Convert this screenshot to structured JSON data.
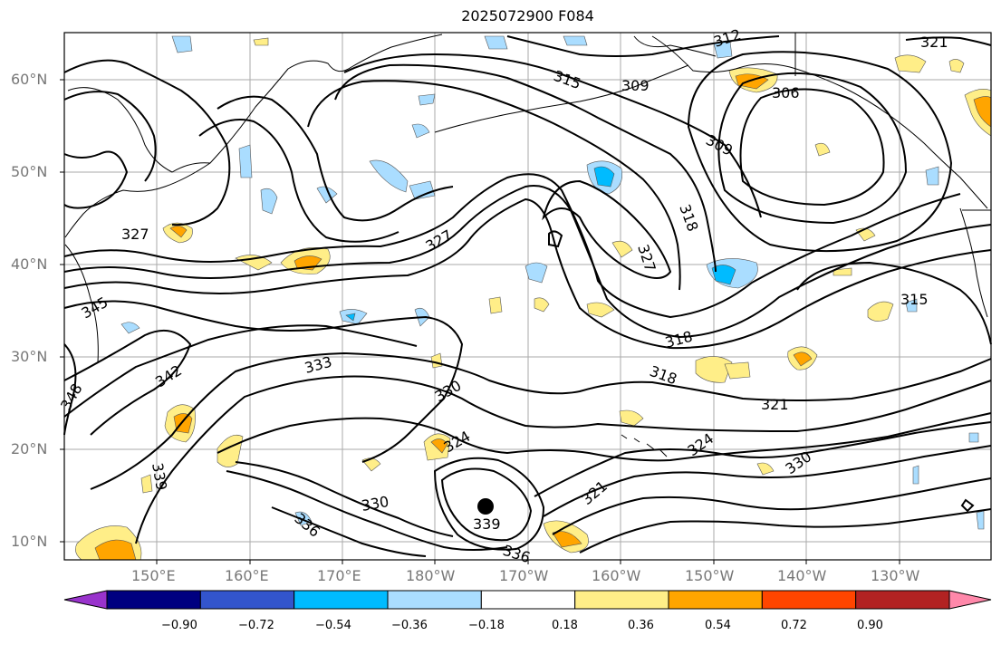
{
  "title": "2025072900 F084",
  "lat_labels": [
    "60°N",
    "50°N",
    "40°N",
    "30°N",
    "20°N",
    "10°N"
  ],
  "lon_labels": [
    "150°E",
    "160°E",
    "170°E",
    "180°W",
    "170°W",
    "160°W",
    "150°W",
    "140°W",
    "130°W"
  ],
  "contour_labels": [
    "312",
    "315",
    "309",
    "306",
    "309",
    "321",
    "318",
    "327",
    "327",
    "345",
    "342",
    "348",
    "333",
    "330",
    "324",
    "330",
    "339",
    "336",
    "336",
    "339",
    "321",
    "324",
    "330",
    "321",
    "318",
    "318",
    "315",
    "327"
  ],
  "colorbar": {
    "ticks": [
      "−0.90",
      "−0.72",
      "−0.54",
      "−0.36",
      "−0.18",
      "0.18",
      "0.36",
      "0.54",
      "0.72",
      "0.90"
    ],
    "colors": [
      "#9933cc",
      "#000080",
      "#3355cc",
      "#00bbff",
      "#aaddff",
      "#ffffff",
      "#ffee88",
      "#ffa500",
      "#ff4500",
      "#b22222",
      "#ff88aa"
    ]
  },
  "marker": "storm-center"
}
